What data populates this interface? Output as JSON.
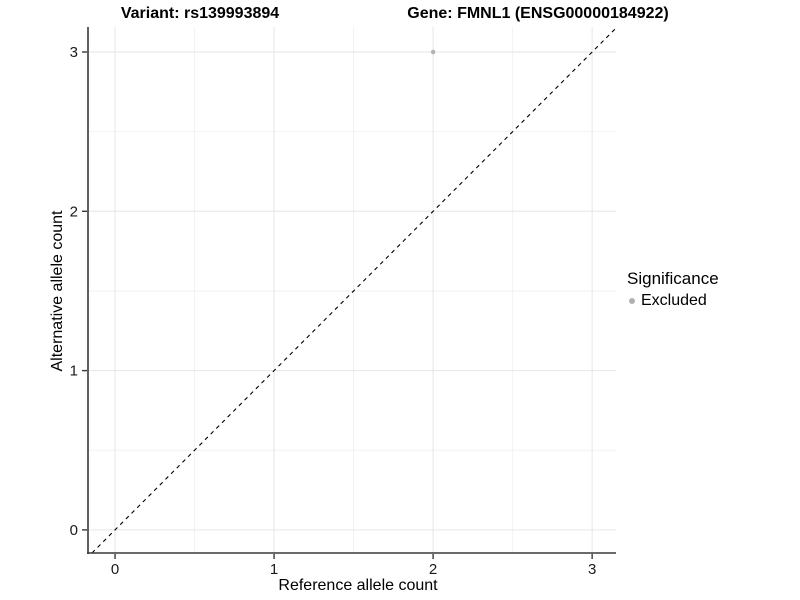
{
  "chart_data": {
    "type": "scatter",
    "title_left": "Variant: rs139993894",
    "title_right": "Gene: FMNL1 (ENSG00000184922)",
    "xlabel": "Reference allele count",
    "ylabel": "Alternative allele count",
    "xticks": [
      0,
      1,
      2,
      3
    ],
    "yticks": [
      0,
      1,
      2,
      3
    ],
    "xlim": [
      -0.17,
      3.15
    ],
    "ylim": [
      -0.145,
      3.157
    ],
    "grid": "major+minor",
    "legend_position": "right",
    "legend": {
      "title": "Significance",
      "entries": [
        "Excluded"
      ]
    },
    "series": [
      {
        "name": "Excluded",
        "color": "#b1b1b1",
        "points": [
          [
            2,
            3
          ]
        ]
      }
    ],
    "reference_line": {
      "type": "identity",
      "style": "dashed",
      "color": "#000000",
      "dash": "4 4"
    },
    "colors": {
      "grid_major": "#e6e6e6",
      "grid_minor": "#f2f2f2",
      "axis": "#383838",
      "tick_label": "#1a1a1a",
      "background": "#ffffff"
    }
  }
}
